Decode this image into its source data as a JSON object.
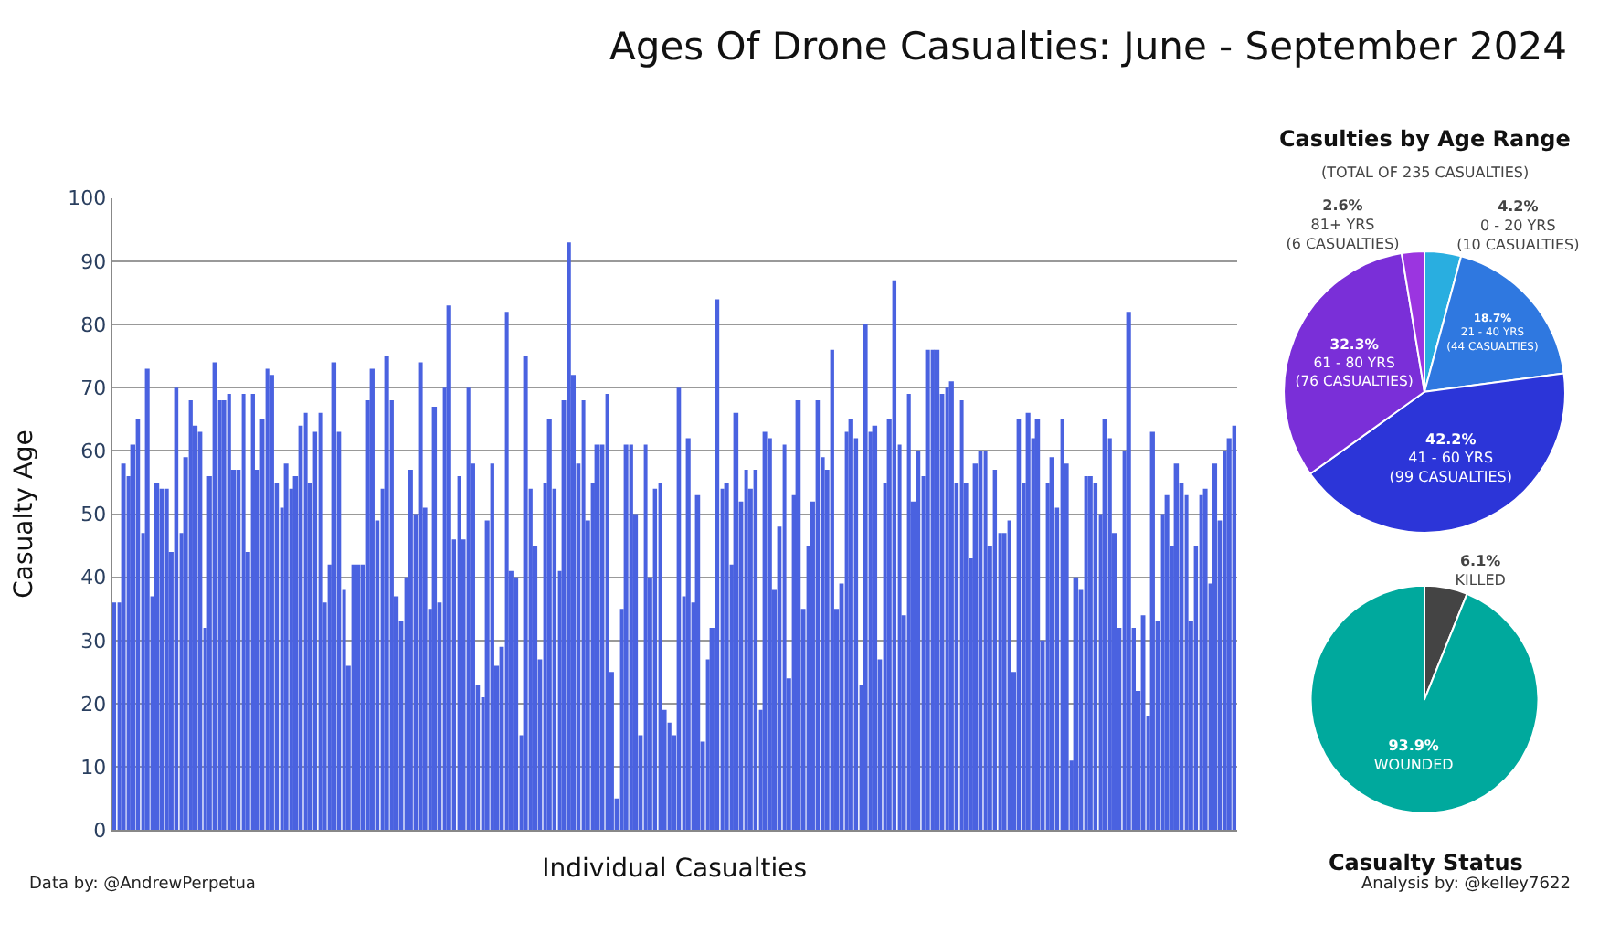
{
  "chart_data": [
    {
      "type": "bar",
      "title": "Ages Of Drone Casualties: June - September 2024",
      "xlabel": "Individual Casualties",
      "ylabel": "Casualty Age",
      "categories": [
        null,
        null,
        null,
        null,
        null,
        null,
        null,
        null,
        null,
        null,
        null,
        null,
        null,
        null,
        null,
        null,
        null,
        null,
        null,
        null,
        null,
        null,
        null,
        null,
        null,
        null,
        null,
        null,
        null,
        null,
        null,
        null,
        null,
        null,
        null,
        null,
        null,
        null,
        null,
        null,
        null,
        null,
        null,
        null,
        null,
        null,
        null,
        null,
        null,
        null,
        null,
        null,
        null,
        null,
        null,
        null,
        null,
        null,
        null,
        null,
        null,
        null,
        null,
        null,
        null,
        null,
        null,
        null,
        null,
        null,
        null,
        null,
        null,
        null,
        null,
        null,
        null,
        null,
        null,
        null,
        null,
        null,
        null,
        null,
        null,
        null,
        null,
        null,
        null,
        null,
        null,
        null,
        null,
        null,
        null,
        null,
        null,
        null,
        null,
        null,
        null,
        null,
        null,
        null,
        null,
        null,
        null,
        null,
        null,
        null,
        null,
        null,
        null,
        null,
        null,
        null,
        null,
        null,
        null,
        null,
        null,
        null,
        null,
        null,
        null,
        null,
        null,
        null,
        null,
        null,
        null,
        null,
        null,
        null,
        null,
        null,
        null,
        null,
        null,
        null,
        null,
        null,
        null,
        null,
        null,
        null,
        null,
        null,
        null,
        null,
        null,
        null,
        null,
        null,
        null,
        null,
        null,
        null,
        null,
        null,
        null,
        null,
        null,
        null,
        null,
        null,
        null,
        null,
        null,
        null,
        null,
        null,
        null,
        null,
        null,
        null,
        null,
        null,
        null,
        null,
        null,
        null,
        null,
        null,
        null,
        null,
        null,
        null,
        null,
        null,
        null,
        null,
        null,
        null,
        null,
        null,
        null,
        null,
        null,
        null,
        null,
        null,
        null,
        null,
        null,
        null,
        null,
        null,
        null,
        null,
        null,
        null,
        null,
        null,
        null,
        null,
        null,
        null,
        null,
        null,
        null,
        null,
        null,
        null,
        null,
        null,
        null,
        null,
        null,
        null,
        null,
        null,
        null,
        null,
        null
      ],
      "values": [
        36,
        36,
        58,
        56,
        61,
        65,
        47,
        73,
        37,
        55,
        54,
        54,
        44,
        70,
        47,
        59,
        68,
        64,
        63,
        32,
        56,
        74,
        68,
        68,
        69,
        57,
        57,
        69,
        44,
        69,
        57,
        65,
        73,
        72,
        55,
        51,
        58,
        54,
        56,
        64,
        66,
        55,
        63,
        66,
        36,
        42,
        74,
        63,
        38,
        26,
        42,
        42,
        42,
        68,
        73,
        49,
        54,
        75,
        68,
        37,
        33,
        40,
        57,
        50,
        74,
        51,
        35,
        67,
        36,
        70,
        83,
        46,
        56,
        46,
        70,
        58,
        23,
        21,
        49,
        58,
        26,
        29,
        82,
        41,
        40,
        15,
        75,
        54,
        45,
        27,
        55,
        65,
        54,
        41,
        68,
        93,
        72,
        58,
        68,
        49,
        55,
        61,
        61,
        69,
        25,
        5,
        35,
        61,
        61,
        50,
        15,
        61,
        40,
        54,
        55,
        19,
        17,
        15,
        70,
        37,
        62,
        36,
        53,
        14,
        27,
        32,
        84,
        54,
        55,
        42,
        66,
        52,
        57,
        54,
        57,
        19,
        63,
        62,
        38,
        48,
        61,
        24,
        53,
        68,
        35,
        45,
        52,
        68,
        59,
        57,
        76,
        35,
        39,
        63,
        65,
        62,
        23,
        80,
        63,
        64,
        27,
        55,
        65,
        87,
        61,
        34,
        69,
        52,
        60,
        56,
        76,
        76,
        76,
        69,
        70,
        71,
        55,
        68,
        55,
        43,
        58,
        60,
        60,
        45,
        57,
        47,
        47,
        49,
        25,
        65,
        55,
        66,
        62,
        65,
        30,
        55,
        59,
        51,
        65,
        58,
        11,
        40,
        38,
        56,
        56,
        55,
        50,
        65,
        62,
        47,
        32,
        60,
        82,
        32,
        22,
        34,
        18,
        63,
        33,
        50,
        53,
        45,
        58,
        55,
        53,
        33,
        45,
        53,
        54,
        39,
        58,
        49,
        60,
        62,
        64
      ],
      "color": "#4a62e0",
      "ylim": [
        0,
        100
      ],
      "yticks": [
        0,
        10,
        20,
        30,
        40,
        50,
        60,
        70,
        80,
        90,
        100
      ],
      "grid": "y",
      "tick_labels": "y",
      "annotations": [
        "Data by: @AndrewPerpetua",
        "Analysis by: @kelley7622"
      ]
    },
    {
      "type": "pie",
      "title": "Casulties by Age Range",
      "subtitle": "(TOTAL OF 235 CASUALTIES)",
      "categories": [
        "0 - 20 YRS\n(10 CASUALTIES)",
        "21 - 40 YRS\n(44 CASUALTIES)",
        "41 - 60 YRS\n(99 CASUALTIES)",
        "61 - 80 YRS\n(76 CASUALTIES)",
        "81+ YRS\n(6 CASUALTIES)"
      ],
      "values": [
        4.2,
        18.7,
        42.2,
        32.3,
        2.6
      ],
      "value_labels": [
        "4.2%",
        "18.7%",
        "42.2%",
        "32.3%",
        "2.6%"
      ],
      "colors": [
        "#29aee0",
        "#2f78e0",
        "#2c35d8",
        "#7a2fd8",
        "#9b35e0"
      ]
    },
    {
      "type": "pie",
      "title": "Casualty Status",
      "categories": [
        "KILLED",
        "WOUNDED"
      ],
      "values": [
        6.1,
        93.9
      ],
      "value_labels": [
        "6.1%",
        "93.9%"
      ],
      "colors": [
        "#444444",
        "#00a99d"
      ]
    }
  ]
}
